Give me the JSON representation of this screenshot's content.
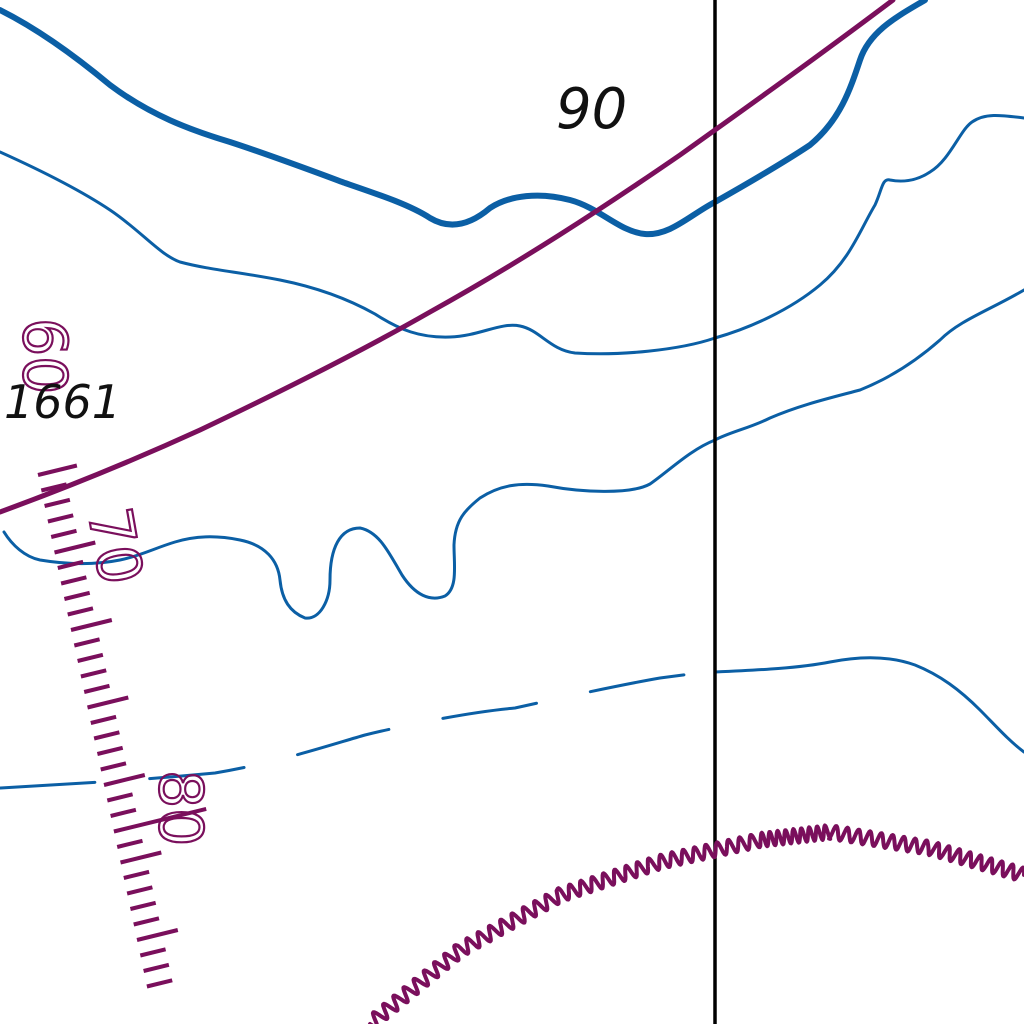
{
  "map": {
    "colors": {
      "background": "#ffffff",
      "contour": "#0b5fa5",
      "magenta": "#7a0f5c",
      "grid": "#000000",
      "label": "#111111"
    },
    "labels": {
      "depth_90": "90",
      "sounding_1991": "1661",
      "scale_60": "60",
      "scale_70": "70",
      "scale_80": "80"
    },
    "features": {
      "contours": [
        "depth-contour",
        "depth-contour",
        "depth-contour",
        "depth-contour",
        "depth-contour",
        "depth-contour-dashed"
      ],
      "range_arc": "magenta-range-arc",
      "limit": "magenta-wavy-limit",
      "meridian": "black-grid-line"
    }
  }
}
